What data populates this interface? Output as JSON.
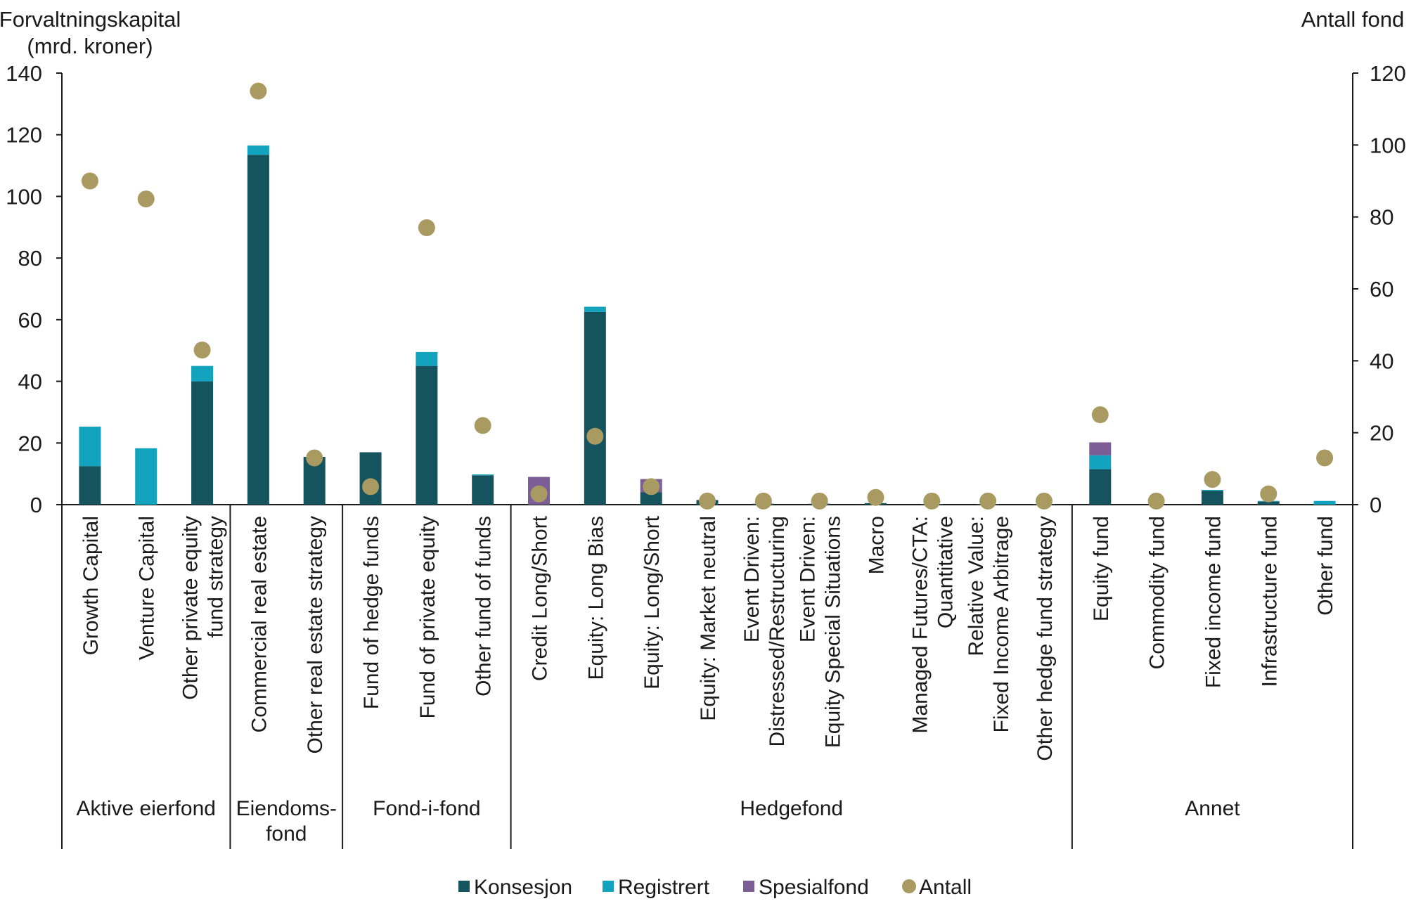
{
  "chart_data": {
    "type": "bar",
    "stacked": true,
    "y_left": {
      "label": [
        "Forvaltningskapital",
        "(mrd. kroner)"
      ],
      "ylim": [
        0,
        140
      ],
      "ticks": [
        0,
        20,
        40,
        60,
        80,
        100,
        120,
        140
      ]
    },
    "y_right": {
      "label": "Antall fond",
      "ylim": [
        0,
        120
      ],
      "ticks": [
        0,
        20,
        40,
        60,
        80,
        100,
        120
      ]
    },
    "categories": [
      [
        "Growth Capital"
      ],
      [
        "Venture Capital"
      ],
      [
        "Other private equity",
        "fund strategy"
      ],
      [
        "Commercial real estate"
      ],
      [
        "Other real estate strategy"
      ],
      [
        "Fund of hedge funds"
      ],
      [
        "Fund of private equity"
      ],
      [
        "Other fund of funds"
      ],
      [
        "Credit Long/Short"
      ],
      [
        "Equity: Long Bias"
      ],
      [
        "Equity: Long/Short"
      ],
      [
        "Equity: Market neutral"
      ],
      [
        "Event Driven:",
        "Distressed/Restructuring"
      ],
      [
        "Event Driven:",
        "Equity Special Situations"
      ],
      [
        "Macro"
      ],
      [
        "Managed Futures/CTA:",
        "Quantitative"
      ],
      [
        "Relative Value:",
        "Fixed Income Arbitrage"
      ],
      [
        "Other hedge fund strategy"
      ],
      [
        "Equity fund"
      ],
      [
        "Commodity fund"
      ],
      [
        "Fixed income fund"
      ],
      [
        "Infrastructure fund"
      ],
      [
        "Other fund"
      ]
    ],
    "groups": [
      {
        "label": [
          "Aktive eierfond"
        ],
        "start": 0,
        "end": 2
      },
      {
        "label": [
          "Eiendoms-",
          "fond"
        ],
        "start": 3,
        "end": 4
      },
      {
        "label": [
          "Fond-i-fond"
        ],
        "start": 5,
        "end": 7
      },
      {
        "label": [
          "Hedgefond"
        ],
        "start": 8,
        "end": 17
      },
      {
        "label": [
          "Annet"
        ],
        "start": 18,
        "end": 22
      }
    ],
    "series": [
      {
        "name": "Konsesjon",
        "color": "#15545e",
        "axis": "left",
        "kind": "bar",
        "values": [
          12.5,
          0,
          40,
          113.5,
          15.5,
          17,
          45,
          9.5,
          0,
          62.5,
          4,
          1.5,
          0.3,
          0.3,
          0.5,
          0.2,
          0.2,
          0.2,
          11.5,
          0,
          4.5,
          1,
          0
        ]
      },
      {
        "name": "Registrert",
        "color": "#12a3bf",
        "axis": "left",
        "kind": "bar",
        "values": [
          12.8,
          18.3,
          5,
          3,
          0,
          0,
          4.5,
          0.3,
          0,
          1.7,
          0,
          0,
          0,
          0,
          0,
          0,
          0,
          0,
          4.5,
          0,
          0.3,
          0.2,
          1.2
        ]
      },
      {
        "name": "Spesialfond",
        "color": "#7d5d95",
        "axis": "left",
        "kind": "bar",
        "values": [
          0,
          0,
          0,
          0,
          0,
          0,
          0,
          0,
          9,
          0,
          4.3,
          0,
          0,
          0,
          0,
          0,
          0,
          0,
          4.2,
          0,
          0,
          0,
          0
        ]
      },
      {
        "name": "Antall",
        "color": "#a99a62",
        "axis": "right",
        "kind": "scatter",
        "values": [
          90,
          85,
          43,
          115,
          13,
          5,
          77,
          22,
          3,
          19,
          5,
          1,
          1,
          1,
          2,
          1,
          1,
          1,
          25,
          1,
          7,
          3,
          13
        ]
      }
    ],
    "legend": "bottom",
    "grid": false
  }
}
